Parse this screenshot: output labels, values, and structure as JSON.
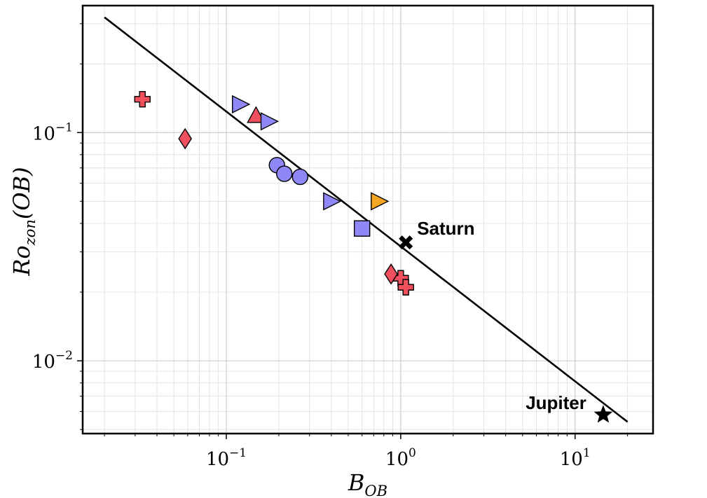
{
  "chart_data": {
    "type": "scatter",
    "xscale": "log",
    "yscale": "log",
    "xlim": [
      0.015,
      28
    ],
    "ylim": [
      0.0048,
      0.36
    ],
    "grid": true,
    "xlabel": {
      "main": "B",
      "sub": "OB"
    },
    "ylabel": {
      "main": "Ro",
      "sub": "zon",
      "suffix": "(OB)"
    },
    "x_ticks": [
      {
        "value": 0.1,
        "base": "10",
        "exp": "−1"
      },
      {
        "value": 1,
        "base": "10",
        "exp": "0"
      },
      {
        "value": 10,
        "base": "10",
        "exp": "1"
      }
    ],
    "y_ticks": [
      {
        "value": 0.01,
        "base": "10",
        "exp": "−2"
      },
      {
        "value": 0.1,
        "base": "10",
        "exp": "−1"
      }
    ],
    "fit_line": {
      "x": [
        0.02,
        20
      ],
      "y": [
        0.32,
        0.0054
      ],
      "color": "#000000"
    },
    "series": [
      {
        "marker": "plus",
        "color": "#f0505e",
        "points": [
          [
            0.033,
            0.14
          ],
          [
            1.0,
            0.023
          ],
          [
            1.07,
            0.021
          ]
        ]
      },
      {
        "marker": "diamond",
        "color": "#f0505e",
        "points": [
          [
            0.058,
            0.094
          ],
          [
            0.88,
            0.024
          ]
        ]
      },
      {
        "marker": "triangle-up",
        "color": "#f0505e",
        "points": [
          [
            0.148,
            0.118
          ]
        ]
      },
      {
        "marker": "triangle-right",
        "color": "#8e87f5",
        "points": [
          [
            0.12,
            0.133
          ],
          [
            0.175,
            0.112
          ],
          [
            0.4,
            0.05
          ]
        ]
      },
      {
        "marker": "circle",
        "color": "#8e87f5",
        "points": [
          [
            0.195,
            0.072
          ],
          [
            0.215,
            0.066
          ],
          [
            0.265,
            0.064
          ]
        ]
      },
      {
        "marker": "square",
        "color": "#8e87f5",
        "points": [
          [
            0.6,
            0.038
          ]
        ]
      },
      {
        "marker": "triangle-right",
        "color": "#f5a623",
        "points": [
          [
            0.75,
            0.05
          ]
        ]
      },
      {
        "marker": "x",
        "color": "#000000",
        "label": "Saturn",
        "points": [
          [
            1.07,
            0.033
          ]
        ]
      },
      {
        "marker": "star",
        "color": "#000000",
        "label": "Jupiter",
        "points": [
          [
            14.5,
            0.0058
          ]
        ]
      }
    ]
  }
}
